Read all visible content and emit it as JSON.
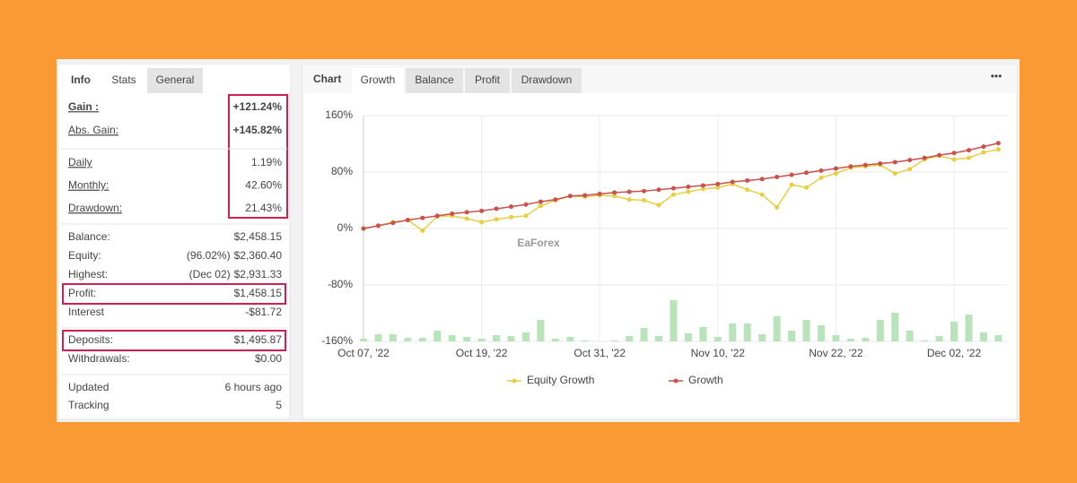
{
  "stats_tabs": [
    "Info",
    "Stats",
    "General"
  ],
  "stats_groups": [
    [
      {
        "label": "Gain :",
        "value": "+121.24%"
      },
      {
        "label": "Abs. Gain:",
        "value": "+145.82%"
      }
    ],
    [
      {
        "label": "Daily",
        "value": "1.19%"
      },
      {
        "label": "Monthly:",
        "value": "42.60%"
      },
      {
        "label": "Drawdown:",
        "value": "21.43%"
      }
    ],
    [
      {
        "label": "Balance:",
        "value": "$2,458.15"
      },
      {
        "label": "Equity:",
        "note": "(96.02%)",
        "value": "$2,360.40"
      },
      {
        "label": "Highest:",
        "note": "(Dec 02)",
        "value": "$2,931.33"
      },
      {
        "label": "Profit:",
        "value": "$1,458.15"
      },
      {
        "label": "Interest",
        "value": "-$81.72"
      }
    ],
    [
      {
        "label": "Deposits:",
        "value": "$1,495.87"
      },
      {
        "label": "Withdrawals:",
        "value": "$0.00"
      }
    ],
    [
      {
        "label": "Updated",
        "value": "6 hours ago"
      },
      {
        "label": "Tracking",
        "value": "5"
      }
    ]
  ],
  "chart_title": "Chart",
  "chart_tabs": [
    "Growth",
    "Balance",
    "Profit",
    "Drawdown"
  ],
  "watermark": "EaForex",
  "chart_data": {
    "type": "line",
    "categories": [
      "Oct 07, '22",
      null,
      null,
      null,
      null,
      null,
      null,
      null,
      "Oct 19, '22",
      null,
      null,
      null,
      null,
      null,
      null,
      null,
      "Oct 31, '22",
      null,
      null,
      null,
      null,
      null,
      null,
      null,
      "Nov 10, '22",
      null,
      null,
      null,
      null,
      null,
      null,
      null,
      "Nov 22, '22",
      null,
      null,
      null,
      null,
      null,
      null,
      null,
      "Dec 02, '22",
      null,
      null,
      null
    ],
    "series": [
      {
        "name": "Equity Growth",
        "color": "#e6cf45",
        "values": [
          0,
          4,
          9,
          12,
          -3,
          17,
          18,
          14,
          9,
          13,
          16,
          18,
          32,
          40,
          46,
          45,
          47,
          46,
          41,
          40,
          33,
          48,
          52,
          56,
          58,
          63,
          55,
          48,
          30,
          62,
          58,
          72,
          78,
          86,
          88,
          90,
          78,
          84,
          98,
          103,
          98,
          100,
          108,
          112
        ]
      },
      {
        "name": "Growth",
        "color": "#c9504b",
        "values": [
          0,
          4,
          8,
          12,
          15,
          18,
          21,
          23,
          25,
          28,
          31,
          34,
          38,
          41,
          46,
          47,
          49,
          51,
          52,
          53,
          55,
          57,
          59,
          61,
          63,
          66,
          68,
          70,
          73,
          76,
          79,
          82,
          85,
          88,
          90,
          92,
          94,
          97,
          100,
          104,
          107,
          111,
          116,
          121
        ]
      }
    ],
    "bar_color": "#b9e4b9",
    "bar_values": [
      3,
      8,
      8,
      4,
      4,
      12,
      7,
      5,
      3,
      7,
      6,
      10,
      24,
      3,
      5,
      1,
      0,
      1,
      6,
      15,
      6,
      46,
      9,
      16,
      5,
      20,
      20,
      8,
      28,
      12,
      24,
      18,
      7,
      3,
      4,
      24,
      32,
      12,
      1,
      6,
      22,
      30,
      10,
      7
    ],
    "y2lim": [
      0,
      252
    ],
    "ylim": [
      -160,
      160
    ],
    "yticks": [
      {
        "value": -160,
        "label": "-160%"
      },
      {
        "value": -80,
        "label": "-80%"
      },
      {
        "value": 0,
        "label": "0%"
      },
      {
        "value": 80,
        "label": "80%"
      },
      {
        "value": 160,
        "label": "160%"
      }
    ],
    "grid": true
  }
}
